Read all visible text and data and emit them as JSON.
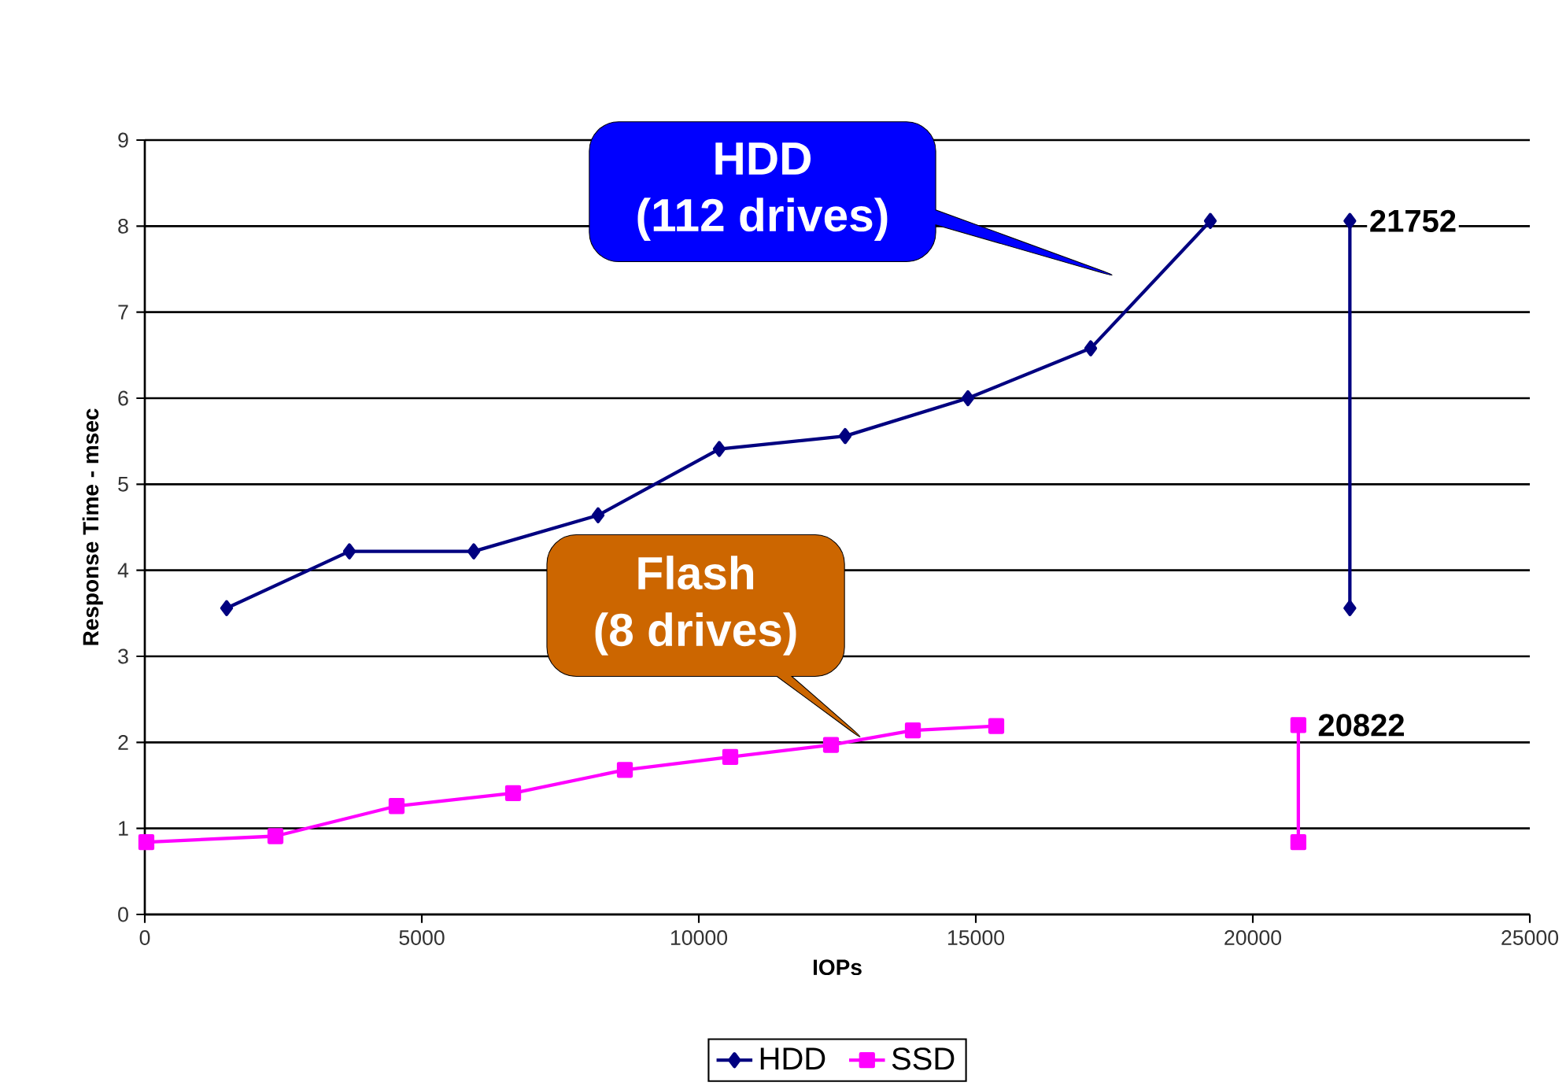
{
  "chart_data": {
    "type": "line",
    "xlabel": "IOPs",
    "ylabel": "Response Time - msec",
    "xlim": [
      0,
      25000
    ],
    "xticks": [
      0,
      5000,
      10000,
      15000,
      20000,
      25000
    ],
    "ylim": [
      0,
      9
    ],
    "yticks": [
      0,
      1,
      2,
      3,
      4,
      5,
      6,
      7,
      8,
      9
    ],
    "grid": "y",
    "legend": "bottom",
    "series": [
      {
        "name": "HDD",
        "color": "#000080",
        "marker": "diamond",
        "x": [
          1477,
          3693,
          5938,
          8182,
          10369,
          12642,
          14858,
          17074,
          19233
        ],
        "values": [
          3.56,
          4.22,
          4.22,
          4.64,
          5.41,
          5.56,
          6.0,
          6.58,
          8.06
        ]
      },
      {
        "name": "SSD",
        "color": "#ff00ff",
        "marker": "square",
        "x": [
          28,
          2358,
          4545,
          6648,
          8665,
          10568,
          12386,
          13864,
          15369
        ],
        "values": [
          0.84,
          0.91,
          1.26,
          1.41,
          1.68,
          1.83,
          1.97,
          2.14,
          2.19
        ]
      },
      {
        "color": "#000080",
        "marker": "diamond",
        "x": [
          21752,
          21752
        ],
        "values": [
          8.06,
          3.56
        ]
      },
      {
        "color": "#ff00ff",
        "marker": "square",
        "x": [
          20822,
          20822
        ],
        "values": [
          2.2,
          0.84
        ]
      }
    ],
    "annotations": [
      "HDD",
      "(112 drives)",
      "Flash",
      "(8 drives)",
      {
        "text": "21752",
        "x": 21752,
        "y": 8.06
      },
      {
        "text": "20822",
        "x": 20822,
        "y": 2.2
      }
    ]
  }
}
